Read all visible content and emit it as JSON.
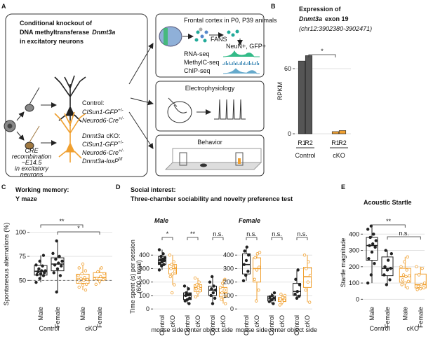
{
  "panel_labels": [
    "A",
    "B",
    "C",
    "D",
    "E"
  ],
  "panel_a": {
    "title": [
      "Conditional knockout of",
      "DNA methyltransferase",
      "Dnmt3a",
      "in excitatory neurons"
    ],
    "control": {
      "label": "Control:",
      "genes": [
        {
          "name": "ClSun1-GFP",
          "sup": "+/-"
        },
        {
          "name": "Neurod6-Cre",
          "sup": "+/-"
        }
      ]
    },
    "cko": {
      "label": [
        "Dnmt3a",
        "cKO:"
      ],
      "genes": [
        {
          "name": "ClSun1-GFP",
          "sup": "+/-"
        },
        {
          "name": "Neurod6-Cre",
          "sup": "+/-"
        },
        {
          "name": "Dnmt3a-loxP",
          "sup": "f/f"
        }
      ]
    },
    "cre_note": [
      "CRE",
      "recombination",
      "~E14.5",
      "in excitatory",
      "neurons"
    ],
    "frontal": {
      "title": "Frontal cortex in P0, P39 animals",
      "fans": "FANS",
      "sort": "NeuN+, GFP+",
      "assays": [
        "RNA-seq",
        "MethylC-seq",
        "ChIP-seq"
      ]
    },
    "ephys": "Electrophysiology",
    "behavior": "Behavior"
  },
  "chart_data": [
    {
      "type": "bar",
      "title": "Expression of",
      "subtitle": [
        "Dnmt3a",
        "exon 19"
      ],
      "note": "(chr12:3902380-3902471)",
      "ylabel": "RPKM",
      "ylim": [
        0,
        80
      ],
      "yticks": [
        0,
        60
      ],
      "grid": true,
      "groups": [
        {
          "name": "Control",
          "categories": [
            "R1",
            "R2"
          ],
          "colors": [
            "#555555",
            "#555555"
          ],
          "values": [
            67,
            72
          ]
        },
        {
          "name": "cKO",
          "categories": [
            "R1",
            "R2"
          ],
          "colors": [
            "#f0a030",
            "#f0a030"
          ],
          "values": [
            2,
            3
          ]
        }
      ],
      "significance": [
        "*"
      ]
    },
    {
      "type": "box",
      "title": "Working memory:",
      "subtitle": "Y maze",
      "ylabel": [
        "Spontaneous alternations (%)"
      ],
      "ylim": [
        27,
        107
      ],
      "yticks": [
        50,
        75,
        100
      ],
      "hline": 50,
      "grid": true,
      "groups": [
        {
          "name": "Control",
          "categories": [
            "Male",
            "Female"
          ],
          "boxes": [
            {
              "color": "#222222",
              "low": 48,
              "q1": 55.5,
              "median": 59.5,
              "q3": 65.5,
              "high": 76,
              "points": [
                48,
                52,
                55,
                56,
                57,
                58,
                59,
                60,
                60,
                62,
                65,
                66,
                70,
                76
              ]
            },
            {
              "color": "#222222",
              "low": 38,
              "q1": 60,
              "median": 67,
              "q3": 73.5,
              "high": 91,
              "points": [
                38,
                55,
                58,
                62,
                65,
                66,
                68,
                70,
                72,
                75,
                78,
                91
              ]
            }
          ]
        },
        {
          "name": "cKO",
          "categories": [
            "Male",
            "Female"
          ],
          "boxes": [
            {
              "color": "#f0a030",
              "low": 40,
              "q1": 47,
              "median": 51.5,
              "q3": 56.5,
              "high": 67,
              "points": [
                40,
                43,
                45,
                46,
                48,
                50,
                51,
                52,
                53,
                55,
                57,
                60,
                63,
                67
              ]
            },
            {
              "color": "#f0a030",
              "low": 46,
              "q1": 50.5,
              "median": 53,
              "q3": 58,
              "high": 63,
              "points": [
                46,
                49,
                51,
                52,
                54,
                57,
                59,
                63
              ]
            }
          ]
        }
      ],
      "significance": [
        "**",
        "*"
      ]
    },
    {
      "type": "box",
      "title": "Social interest:",
      "subtitle": "Three-chamber sociability and novelty preference test",
      "sex": "Male",
      "ylabel": [
        "Time spent (s) per session",
        "(600 s total)"
      ],
      "ylim": [
        -20,
        500
      ],
      "yticks": [
        0,
        100,
        200,
        300,
        400
      ],
      "grid": true,
      "groups": [
        {
          "name": "mouse side",
          "categories": [
            "Control",
            "cKO"
          ],
          "boxes": [
            {
              "color": "#222222",
              "low": 290,
              "q1": 330,
              "median": 360,
              "q3": 390,
              "high": 440,
              "points": [
                290,
                320,
                330,
                340,
                350,
                360,
                365,
                370,
                380,
                390,
                410,
                440
              ]
            },
            {
              "color": "#f0a030",
              "low": 180,
              "q1": 260,
              "median": 300,
              "q3": 330,
              "high": 400,
              "points": [
                120,
                180,
                240,
                260,
                280,
                300,
                310,
                320,
                330,
                350,
                400
              ]
            }
          ]
        },
        {
          "name": "center",
          "categories": [
            "Control",
            "cKO"
          ],
          "boxes": [
            {
              "color": "#222222",
              "low": 40,
              "q1": 70,
              "median": 100,
              "q3": 120,
              "high": 170,
              "points": [
                40,
                60,
                70,
                80,
                100,
                105,
                110,
                120,
                150,
                170
              ]
            },
            {
              "color": "#f0a030",
              "low": 90,
              "q1": 130,
              "median": 160,
              "q3": 180,
              "high": 230,
              "points": [
                90,
                120,
                135,
                150,
                160,
                170,
                180,
                200,
                230
              ]
            }
          ]
        },
        {
          "name": "object side",
          "categories": [
            "Control",
            "cKO"
          ],
          "boxes": [
            {
              "color": "#222222",
              "low": 40,
              "q1": 100,
              "median": 140,
              "q3": 170,
              "high": 240,
              "points": [
                40,
                80,
                100,
                120,
                140,
                150,
                170,
                200,
                240
              ]
            },
            {
              "color": "#f0a030",
              "low": 40,
              "q1": 90,
              "median": 120,
              "q3": 160,
              "high": 220,
              "points": [
                40,
                70,
                90,
                110,
                120,
                140,
                160,
                190,
                220
              ]
            }
          ]
        }
      ],
      "significance": [
        "*",
        "**",
        "n.s."
      ]
    },
    {
      "type": "box",
      "sex": "Female",
      "ylim": [
        -20,
        500
      ],
      "yticks": [
        0,
        100,
        200,
        300,
        400
      ],
      "grid": true,
      "groups": [
        {
          "name": "mouse side",
          "categories": [
            "Control",
            "cKO"
          ],
          "boxes": [
            {
              "color": "#222222",
              "low": 210,
              "q1": 260,
              "median": 330,
              "q3": 410,
              "high": 460,
              "points": [
                210,
                250,
                280,
                330,
                360,
                400,
                430,
                460
              ]
            },
            {
              "color": "#f0a030",
              "low": 60,
              "q1": 200,
              "median": 300,
              "q3": 380,
              "high": 420,
              "points": [
                60,
                140,
                220,
                290,
                310,
                380,
                410,
                420
              ]
            }
          ]
        },
        {
          "name": "center",
          "categories": [
            "Control",
            "cKO"
          ],
          "boxes": [
            {
              "color": "#222222",
              "low": 40,
              "q1": 60,
              "median": 75,
              "q3": 95,
              "high": 120,
              "points": [
                40,
                55,
                70,
                80,
                90,
                100,
                120
              ]
            },
            {
              "color": "#f0a030",
              "low": 30,
              "q1": 55,
              "median": 70,
              "q3": 85,
              "high": 110,
              "points": [
                30,
                50,
                65,
                75,
                85,
                100,
                110
              ]
            }
          ]
        },
        {
          "name": "object side",
          "categories": [
            "Control",
            "cKO"
          ],
          "boxes": [
            {
              "color": "#222222",
              "low": 80,
              "q1": 100,
              "median": 130,
              "q3": 190,
              "high": 290,
              "points": [
                80,
                95,
                110,
                130,
                180,
                220,
                290
              ]
            },
            {
              "color": "#f0a030",
              "low": 50,
              "q1": 160,
              "median": 240,
              "q3": 310,
              "high": 400,
              "points": [
                50,
                140,
                200,
                250,
                300,
                350,
                400
              ]
            }
          ]
        }
      ],
      "significance": [
        "n.s.",
        "n.s.",
        "n.s."
      ]
    },
    {
      "type": "box",
      "title": "Acoustic Startle",
      "ylabel": [
        "Startle magnitude"
      ],
      "ylim": [
        -20,
        470
      ],
      "yticks": [
        0,
        100,
        200,
        300,
        400
      ],
      "grid": true,
      "groups": [
        {
          "name": "Control",
          "categories": [
            "Male",
            "Female"
          ],
          "boxes": [
            {
              "color": "#222222",
              "low": 100,
              "q1": 240,
              "median": 330,
              "q3": 380,
              "high": 450,
              "points": [
                100,
                150,
                220,
                250,
                290,
                320,
                330,
                340,
                360,
                380,
                400,
                430,
                450
              ]
            },
            {
              "color": "#222222",
              "low": 90,
              "q1": 145,
              "median": 190,
              "q3": 260,
              "high": 300,
              "points": [
                90,
                120,
                150,
                180,
                190,
                200,
                240,
                280,
                300
              ]
            }
          ]
        },
        {
          "name": "cKO",
          "categories": [
            "Male",
            "Female"
          ],
          "boxes": [
            {
              "color": "#f0a030",
              "low": 70,
              "q1": 105,
              "median": 140,
              "q3": 190,
              "high": 260,
              "points": [
                70,
                90,
                100,
                110,
                120,
                140,
                145,
                150,
                180,
                200,
                230,
                260
              ]
            },
            {
              "color": "#f0a030",
              "low": 60,
              "q1": 70,
              "median": 90,
              "q3": 155,
              "high": 200,
              "points": [
                60,
                65,
                70,
                80,
                90,
                100,
                150,
                190,
                200
              ]
            }
          ]
        }
      ],
      "significance": [
        "**",
        "n.s."
      ]
    }
  ]
}
